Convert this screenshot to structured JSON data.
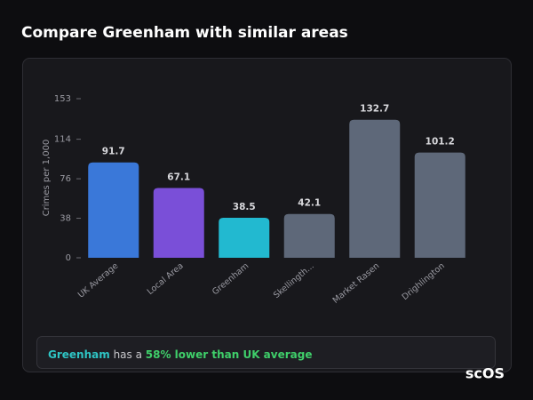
{
  "header": {
    "title": "Compare Greenham with similar areas"
  },
  "chart_data": {
    "type": "bar",
    "ylabel": "Crimes per 1,000",
    "categories": [
      "UK Average",
      "Local Area",
      "Greenham",
      "Skellingth...",
      "Market Rasen",
      "Drighlington"
    ],
    "values": [
      91.7,
      67.1,
      38.5,
      42.1,
      132.7,
      101.2
    ],
    "colors": [
      "#3a78d9",
      "#7a4fd8",
      "#22b9d0",
      "#5e6879",
      "#5e6879",
      "#5e6879"
    ],
    "ylim": [
      0,
      153
    ],
    "yticks": [
      0,
      38,
      76,
      114,
      153
    ],
    "grid": false
  },
  "summary": {
    "area": "Greenham",
    "connector": "has a",
    "highlight": "58% lower than UK average"
  },
  "logo": "scOS"
}
